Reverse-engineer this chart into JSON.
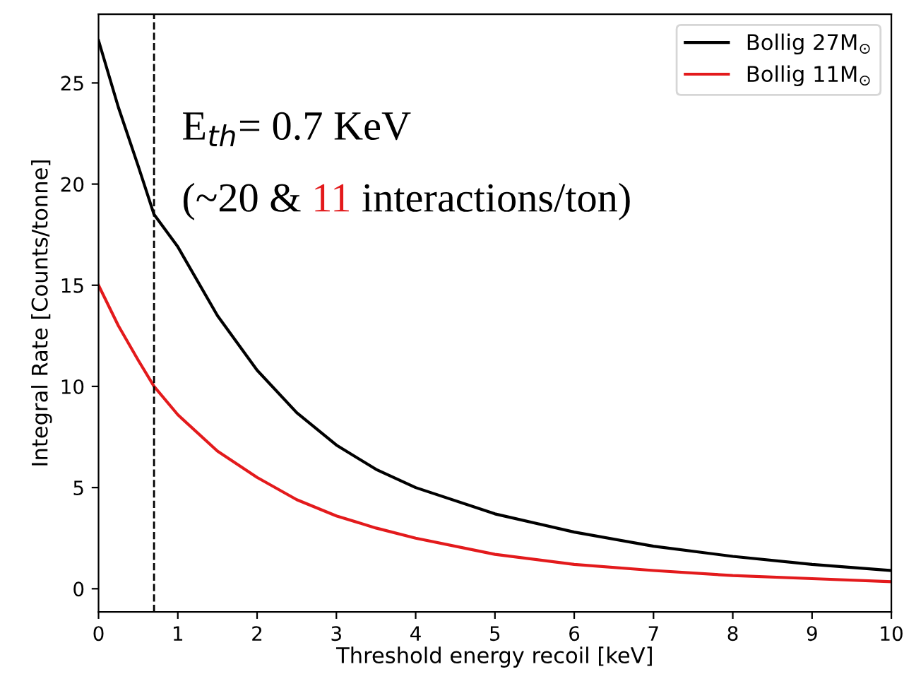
{
  "chart_data": {
    "type": "line",
    "xlabel": "Threshold energy recoil [keV]",
    "ylabel": "Integral Rate [Counts/tonne]",
    "xlim": [
      0,
      10
    ],
    "xticks": [
      0,
      1,
      2,
      3,
      4,
      5,
      6,
      7,
      8,
      9,
      10
    ],
    "ylim": [
      -1.15,
      28.4
    ],
    "yticks": [
      0,
      5,
      10,
      15,
      20,
      25
    ],
    "x": [
      0,
      0.25,
      0.5,
      0.7,
      1,
      1.5,
      2,
      2.5,
      3,
      3.5,
      4,
      5,
      6,
      7,
      8,
      9,
      10
    ],
    "series": [
      {
        "name": "Bollig 27M$_{⊙}$",
        "color": "#000000",
        "values": [
          27.1,
          23.8,
          20.9,
          18.5,
          16.9,
          13.5,
          10.8,
          8.7,
          7.1,
          5.9,
          5.0,
          3.7,
          2.8,
          2.1,
          1.6,
          1.2,
          0.9
        ]
      },
      {
        "name": "Bollig 11M$_{⊙}$",
        "color": "#e31a1c",
        "values": [
          15.0,
          13.0,
          11.3,
          10.0,
          8.6,
          6.8,
          5.5,
          4.4,
          3.6,
          3.0,
          2.5,
          1.7,
          1.2,
          0.9,
          0.65,
          0.5,
          0.35
        ]
      }
    ],
    "ref_lines": [
      {
        "axis": "x",
        "value": 0.7,
        "color": "#000000",
        "line_style": "dashed"
      }
    ],
    "annotations": [
      "E$_{th}$= 0.7 KeV",
      "(~20 & ",
      "11",
      " interactions/ton)"
    ],
    "legend": "top right",
    "grid": false,
    "marker": "none",
    "line_style": "solid"
  }
}
